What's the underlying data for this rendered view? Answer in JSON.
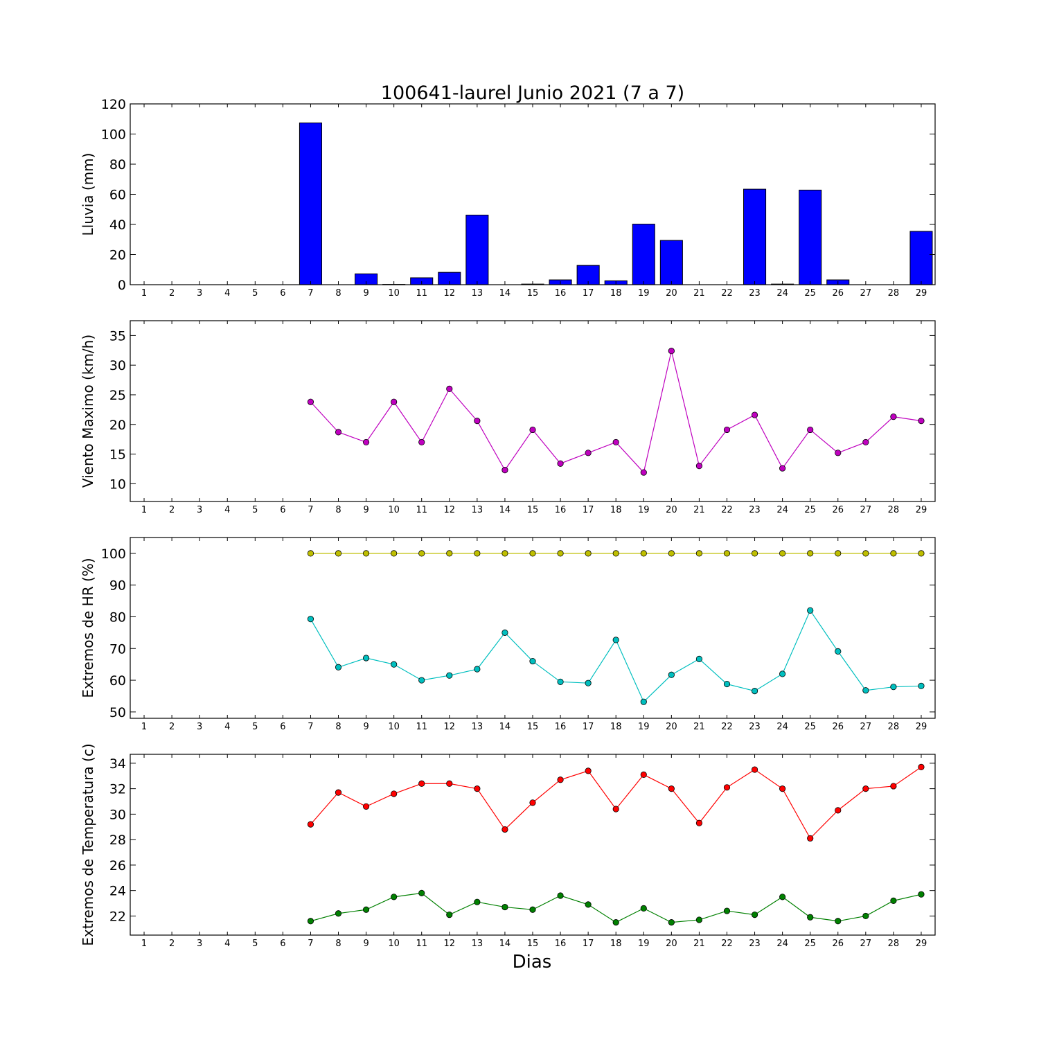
{
  "figure": {
    "title": "100641-laurel Junio 2021  (7 a 7)",
    "xlabel": "Dias"
  },
  "chart_data": [
    {
      "type": "bar",
      "ylabel": "Lluvia (mm)",
      "ylim": [
        0,
        120
      ],
      "yticks": [
        0,
        20,
        40,
        60,
        80,
        100,
        120
      ],
      "categories": [
        1,
        2,
        3,
        4,
        5,
        6,
        7,
        8,
        9,
        10,
        11,
        12,
        13,
        14,
        15,
        16,
        17,
        18,
        19,
        20,
        21,
        22,
        23,
        24,
        25,
        26,
        27,
        28,
        29
      ],
      "series": [
        {
          "color": "#0000ff",
          "values": [
            null,
            null,
            null,
            null,
            null,
            null,
            107.4,
            null,
            7.2,
            0.2,
            4.6,
            8.2,
            46.2,
            null,
            0.4,
            3.2,
            12.8,
            2.6,
            40.2,
            29.4,
            null,
            null,
            63.4,
            0.4,
            62.8,
            3.2,
            null,
            null,
            35.4
          ]
        }
      ],
      "grid": false
    },
    {
      "type": "line",
      "ylabel": "Viento Maximo (km/h)",
      "ylim": [
        7,
        37.5
      ],
      "yticks": [
        10,
        15,
        20,
        25,
        30,
        35
      ],
      "categories": [
        1,
        2,
        3,
        4,
        5,
        6,
        7,
        8,
        9,
        10,
        11,
        12,
        13,
        14,
        15,
        16,
        17,
        18,
        19,
        20,
        21,
        22,
        23,
        24,
        25,
        26,
        27,
        28,
        29
      ],
      "series": [
        {
          "color": "#bf00bf",
          "values": [
            null,
            null,
            null,
            null,
            null,
            null,
            23.8,
            18.7,
            17.0,
            23.8,
            17.0,
            26.0,
            20.6,
            12.3,
            19.1,
            13.4,
            15.2,
            17.0,
            11.9,
            32.4,
            13.0,
            19.1,
            21.6,
            12.6,
            19.1,
            15.2,
            17.0,
            21.3,
            20.6
          ]
        }
      ],
      "grid": false
    },
    {
      "type": "line",
      "ylabel": "Extremos de HR (%)",
      "ylim": [
        48,
        105
      ],
      "yticks": [
        50,
        60,
        70,
        80,
        90,
        100
      ],
      "categories": [
        1,
        2,
        3,
        4,
        5,
        6,
        7,
        8,
        9,
        10,
        11,
        12,
        13,
        14,
        15,
        16,
        17,
        18,
        19,
        20,
        21,
        22,
        23,
        24,
        25,
        26,
        27,
        28,
        29
      ],
      "series": [
        {
          "color": "#bfbf00",
          "values": [
            null,
            null,
            null,
            null,
            null,
            null,
            100,
            100,
            100,
            100,
            100,
            100,
            100,
            100,
            100,
            100,
            100,
            100,
            100,
            100,
            100,
            100,
            100,
            100,
            100,
            100,
            100,
            100,
            100
          ]
        },
        {
          "color": "#00bfbf",
          "values": [
            null,
            null,
            null,
            null,
            null,
            null,
            79.3,
            64.1,
            67.0,
            65.0,
            60.0,
            61.5,
            63.5,
            75.0,
            66.0,
            59.5,
            59.1,
            72.7,
            53.2,
            61.7,
            66.7,
            58.8,
            56.6,
            62.0,
            82.0,
            69.1,
            56.8,
            57.9,
            58.2
          ]
        }
      ],
      "grid": false
    },
    {
      "type": "line",
      "ylabel": "Extremos de Temperatura (c)",
      "ylim": [
        20.5,
        34.7
      ],
      "yticks": [
        22,
        24,
        26,
        28,
        30,
        32,
        34
      ],
      "categories": [
        1,
        2,
        3,
        4,
        5,
        6,
        7,
        8,
        9,
        10,
        11,
        12,
        13,
        14,
        15,
        16,
        17,
        18,
        19,
        20,
        21,
        22,
        23,
        24,
        25,
        26,
        27,
        28,
        29
      ],
      "series": [
        {
          "color": "#ff0000",
          "values": [
            null,
            null,
            null,
            null,
            null,
            null,
            29.2,
            31.7,
            30.6,
            31.6,
            32.4,
            32.4,
            32.0,
            28.8,
            30.9,
            32.7,
            33.4,
            30.4,
            33.1,
            32.0,
            29.3,
            32.1,
            33.5,
            32.0,
            28.1,
            30.3,
            32.0,
            32.2,
            33.7
          ]
        },
        {
          "color": "#008000",
          "values": [
            null,
            null,
            null,
            null,
            null,
            null,
            21.6,
            22.2,
            22.5,
            23.5,
            23.8,
            22.1,
            23.1,
            22.7,
            22.5,
            23.6,
            22.9,
            21.5,
            22.6,
            21.5,
            21.7,
            22.4,
            22.1,
            23.5,
            21.9,
            21.6,
            22.0,
            23.2,
            23.7
          ]
        }
      ],
      "grid": false
    }
  ]
}
